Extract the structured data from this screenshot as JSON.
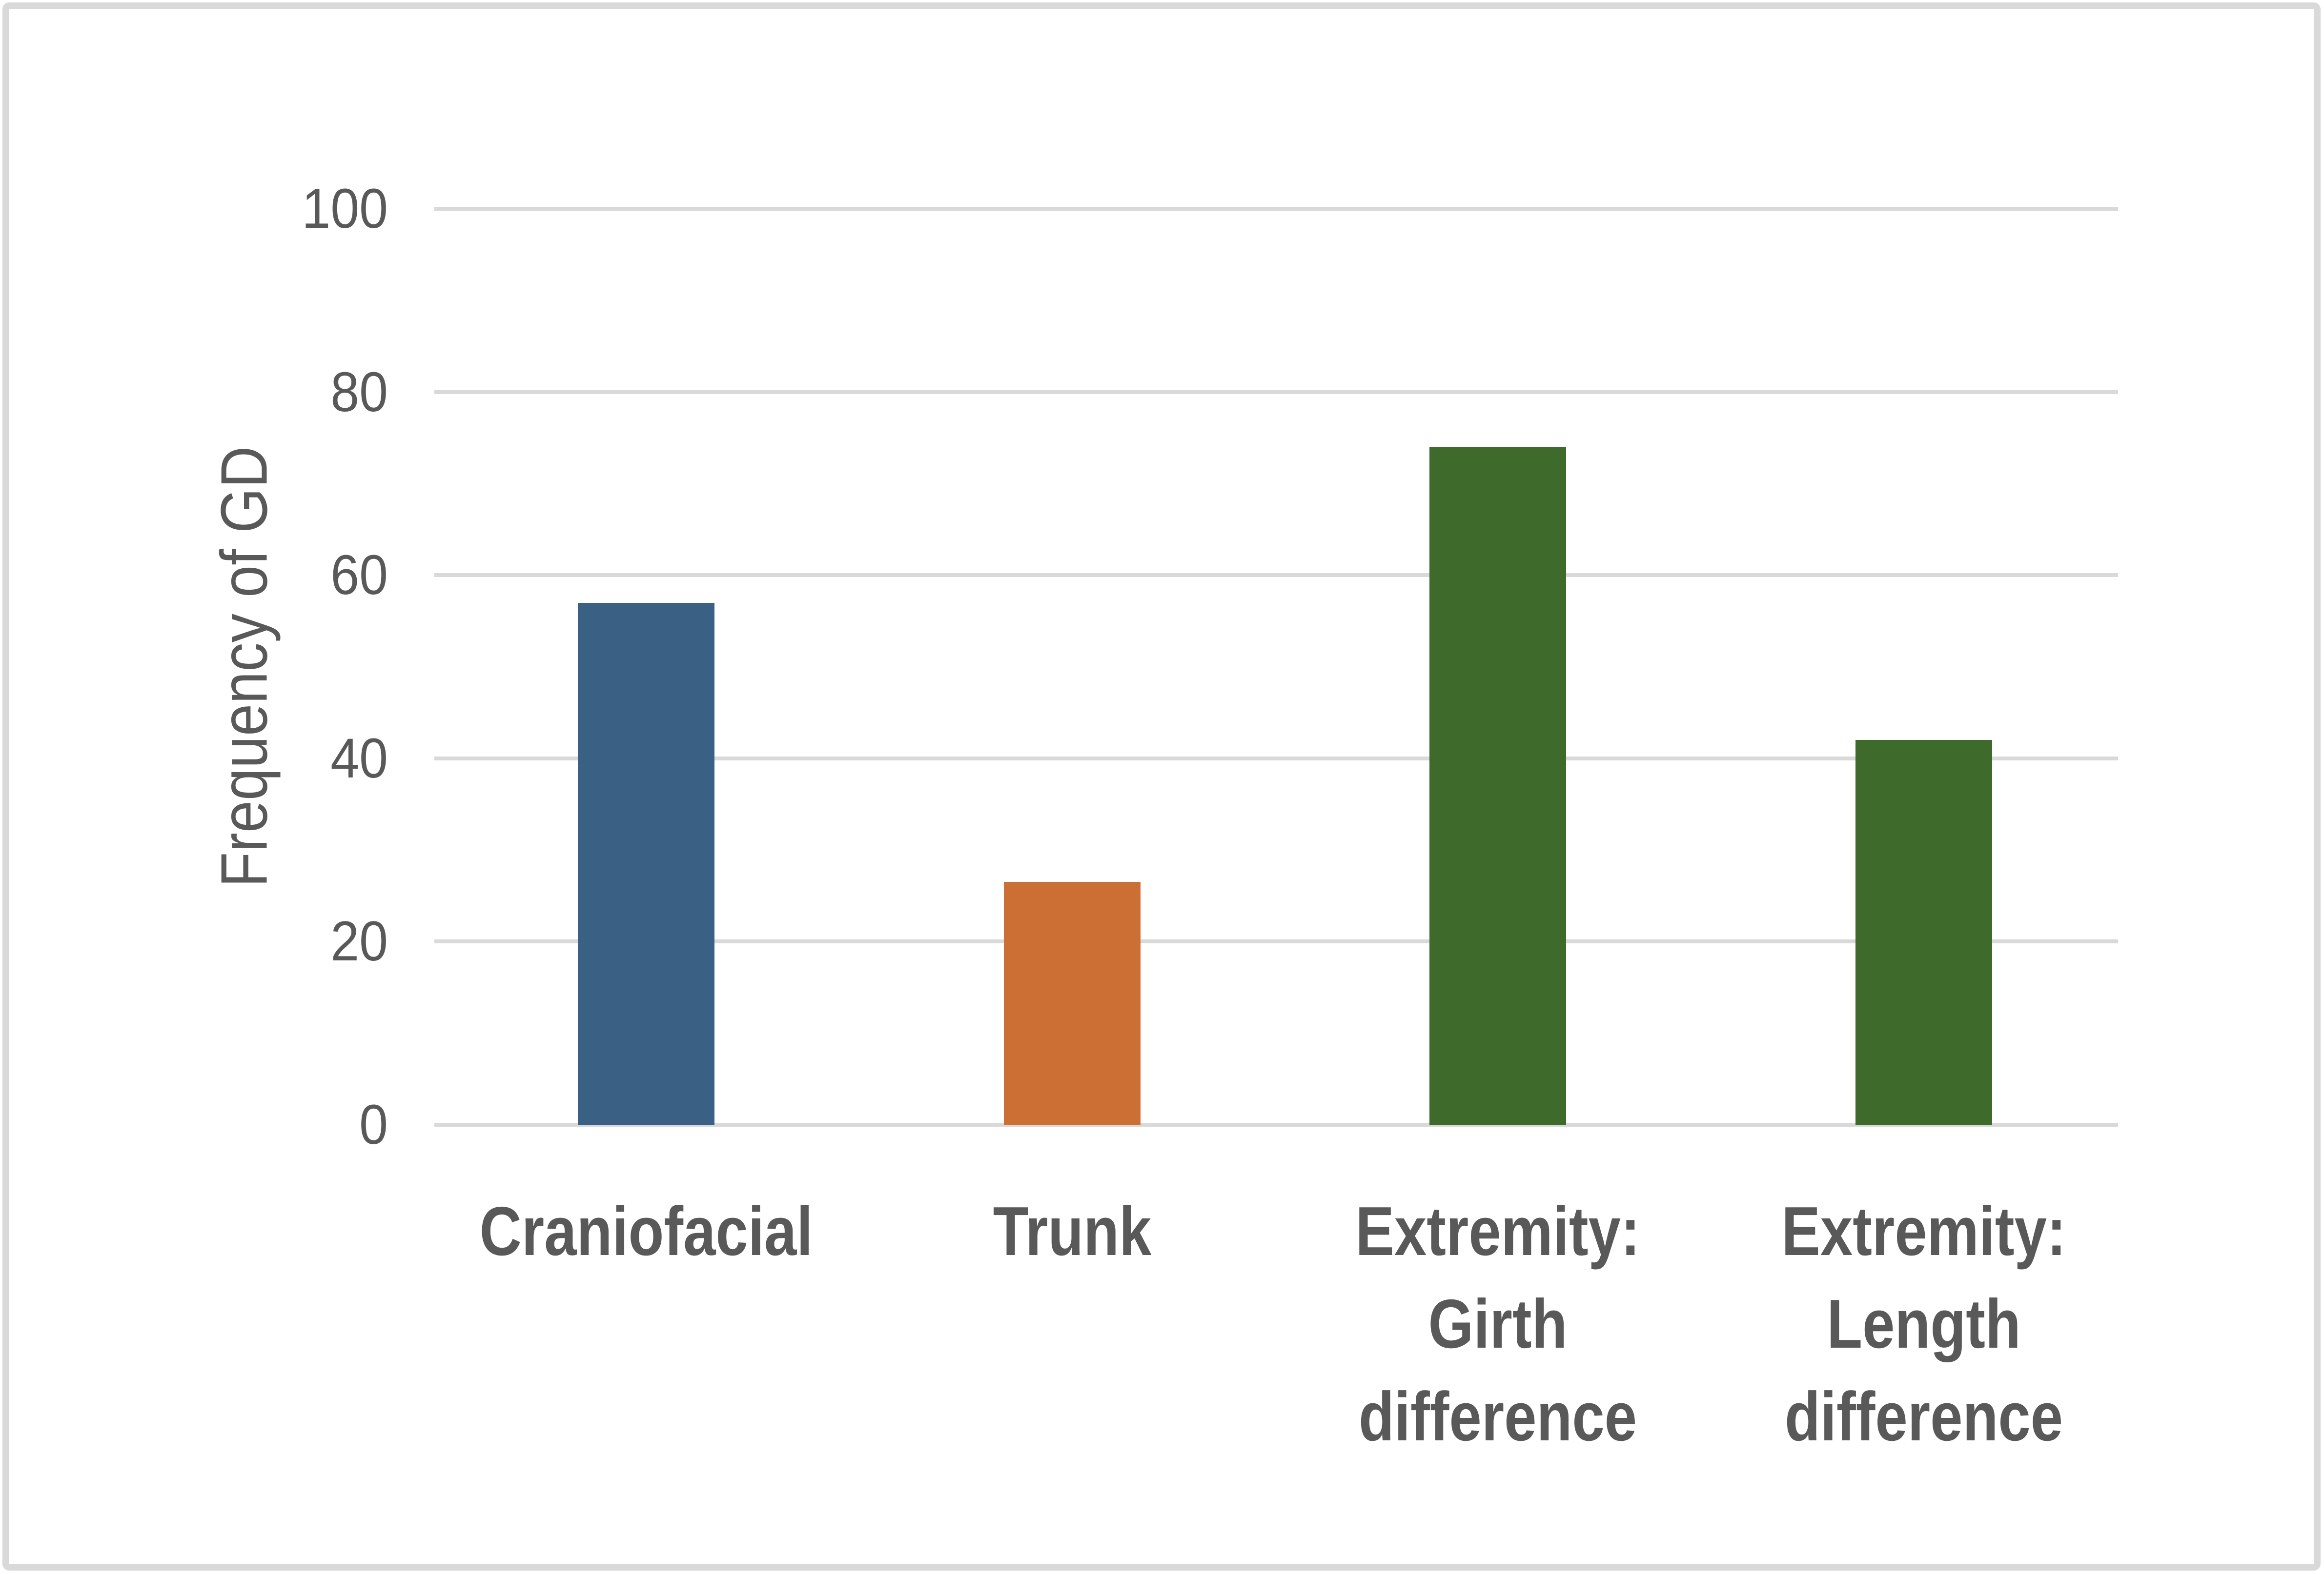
{
  "chart_data": {
    "type": "bar",
    "title": "",
    "xlabel": "",
    "ylabel": "Frequency of GD",
    "categories": [
      "Craniofacial",
      "Trunk",
      "Extremity: Girth difference",
      "Extremity: Length difference"
    ],
    "category_label_lines": [
      [
        "Craniofacial"
      ],
      [
        "Trunk"
      ],
      [
        "Extremity:",
        "Girth",
        "difference"
      ],
      [
        "Extremity:",
        "Length",
        "difference"
      ]
    ],
    "values": [
      57,
      26.5,
      74,
      42
    ],
    "bar_colors": [
      "#3A6183",
      "#CB6F35",
      "#3E6B2B",
      "#3E6B2B"
    ],
    "ylim": [
      0,
      100
    ],
    "yticks": [
      0,
      20,
      40,
      60,
      80,
      100
    ],
    "grid": "horizontal",
    "legend_position": "none"
  },
  "styles": {
    "text_color": "#595959",
    "gridline_color": "#D9D9D9",
    "frame_border_color": "#D9D9D9",
    "background_color": "#FFFFFF"
  }
}
